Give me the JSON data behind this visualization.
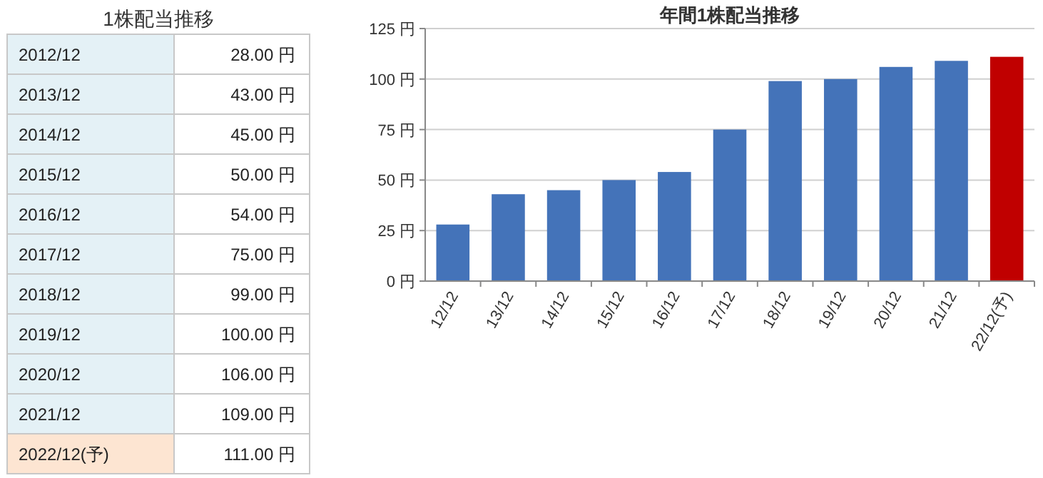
{
  "chart_data": [
    {
      "type": "other",
      "title": "1株配当推移",
      "categories": [
        "2012/12",
        "2013/12",
        "2014/12",
        "2015/12",
        "2016/12",
        "2017/12",
        "2018/12",
        "2019/12",
        "2020/12",
        "2021/12",
        "2022/12(予)"
      ],
      "value_labels": [
        "28.00 円",
        "43.00 円",
        "45.00 円",
        "50.00 円",
        "54.00 円",
        "75.00 円",
        "99.00 円",
        "100.00 円",
        "106.00 円",
        "109.00 円",
        "111.00 円"
      ]
    },
    {
      "type": "bar",
      "title": "年間1株配当推移",
      "categories": [
        "12/12",
        "13/12",
        "14/12",
        "15/12",
        "16/12",
        "17/12",
        "18/12",
        "19/12",
        "20/12",
        "21/12",
        "22/12(予)"
      ],
      "values": [
        28,
        43,
        45,
        50,
        54,
        75,
        99,
        100,
        106,
        109,
        111
      ],
      "colors": [
        "#4473b9",
        "#4473b9",
        "#4473b9",
        "#4473b9",
        "#4473b9",
        "#4473b9",
        "#4473b9",
        "#4473b9",
        "#4473b9",
        "#4473b9",
        "#c00000"
      ],
      "ylim": [
        0,
        125
      ],
      "yticks": [
        {
          "value": 0,
          "label": "0 円"
        },
        {
          "value": 25,
          "label": "25 円"
        },
        {
          "value": 50,
          "label": "50 円"
        },
        {
          "value": 75,
          "label": "75 円"
        },
        {
          "value": 100,
          "label": "100 円"
        },
        {
          "value": 125,
          "label": "125 円"
        }
      ],
      "grid": "y"
    }
  ]
}
